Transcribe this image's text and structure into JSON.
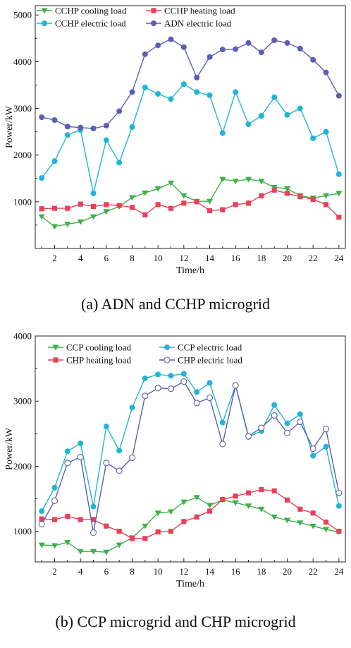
{
  "chart_data": [
    {
      "type": "line",
      "caption": "(a) ADN and CCHP microgrid",
      "xlabel": "Time/h",
      "ylabel": "Power/kW",
      "xlim": [
        0.5,
        24.5
      ],
      "ylim": [
        0,
        5200
      ],
      "xticks": [
        2,
        4,
        6,
        8,
        10,
        12,
        14,
        16,
        18,
        20,
        22,
        24
      ],
      "yticks": [
        1000,
        2000,
        3000,
        4000,
        5000
      ],
      "grid": false,
      "legend_placement": "top-left",
      "x": [
        1,
        2,
        3,
        4,
        5,
        6,
        7,
        8,
        9,
        10,
        11,
        12,
        13,
        14,
        15,
        16,
        17,
        18,
        19,
        20,
        21,
        22,
        23,
        24
      ],
      "series": [
        {
          "name": "CCHP cooling load",
          "color": "#3cb04a",
          "marker": "triangle-down",
          "values": [
            680,
            470,
            520,
            570,
            680,
            790,
            900,
            1090,
            1190,
            1280,
            1400,
            1130,
            1010,
            1010,
            1480,
            1440,
            1480,
            1440,
            1310,
            1280,
            1130,
            1080,
            1130,
            1180
          ]
        },
        {
          "name": "CCHP heating load",
          "color": "#e8415a",
          "marker": "square",
          "values": [
            850,
            860,
            860,
            950,
            900,
            940,
            920,
            880,
            720,
            940,
            860,
            970,
            1000,
            810,
            830,
            940,
            970,
            1130,
            1250,
            1180,
            1110,
            1050,
            940,
            670
          ]
        },
        {
          "name": "CCHP electric load",
          "color": "#1fb5d8",
          "marker": "circle",
          "values": [
            1510,
            1870,
            2430,
            2540,
            1180,
            2320,
            1840,
            2600,
            3450,
            3310,
            3200,
            3520,
            3350,
            3280,
            2470,
            3350,
            2660,
            2840,
            3240,
            2860,
            3000,
            2360,
            2500,
            1590
          ]
        },
        {
          "name": "ADN electric load",
          "color": "#5b5fb0",
          "marker": "circle",
          "values": [
            2810,
            2750,
            2610,
            2590,
            2570,
            2630,
            2940,
            3350,
            4160,
            4350,
            4480,
            4310,
            3660,
            4100,
            4260,
            4270,
            4400,
            4200,
            4460,
            4400,
            4280,
            4040,
            3770,
            3270
          ]
        }
      ]
    },
    {
      "type": "line",
      "caption": "(b) CCP microgrid and CHP microgrid",
      "xlabel": "Time/h",
      "ylabel": "Power/kW",
      "xlim": [
        0.5,
        24.5
      ],
      "ylim": [
        530,
        4000
      ],
      "xticks": [
        2,
        4,
        6,
        8,
        10,
        12,
        14,
        16,
        18,
        20,
        22,
        24
      ],
      "yticks": [
        1000,
        2000,
        3000,
        4000
      ],
      "grid": false,
      "legend_placement": "top",
      "x": [
        1,
        2,
        3,
        4,
        5,
        6,
        7,
        8,
        9,
        10,
        11,
        12,
        13,
        14,
        15,
        16,
        17,
        18,
        19,
        20,
        21,
        22,
        23,
        24
      ],
      "series": [
        {
          "name": "CCP cooling load",
          "color": "#3cb04a",
          "marker": "triangle-down",
          "values": [
            790,
            780,
            830,
            690,
            690,
            680,
            790,
            900,
            1080,
            1280,
            1300,
            1450,
            1520,
            1400,
            1480,
            1440,
            1390,
            1340,
            1220,
            1170,
            1130,
            1080,
            1030,
            990
          ]
        },
        {
          "name": "CCP electric load",
          "color": "#1fb5d8",
          "marker": "circle",
          "values": [
            1310,
            1670,
            2230,
            2350,
            1380,
            2610,
            2240,
            2900,
            3350,
            3410,
            3390,
            3420,
            3140,
            3280,
            2670,
            3240,
            2450,
            2540,
            2940,
            2660,
            2800,
            2160,
            2300,
            1390
          ]
        },
        {
          "name": "CHP heating load",
          "color": "#e8415a",
          "marker": "square",
          "values": [
            1190,
            1180,
            1230,
            1180,
            1180,
            1080,
            1000,
            890,
            890,
            990,
            1000,
            1150,
            1220,
            1310,
            1490,
            1540,
            1590,
            1640,
            1620,
            1480,
            1340,
            1280,
            1140,
            1000
          ]
        },
        {
          "name": "CHP electric load",
          "color": "#5b5fb0",
          "marker": "open-circle",
          "values": [
            1110,
            1470,
            2050,
            2140,
            980,
            2050,
            1930,
            2130,
            3080,
            3200,
            3190,
            3300,
            2970,
            3050,
            2340,
            3240,
            2460,
            2590,
            2780,
            2510,
            2680,
            2270,
            2570,
            1590
          ]
        }
      ]
    }
  ]
}
